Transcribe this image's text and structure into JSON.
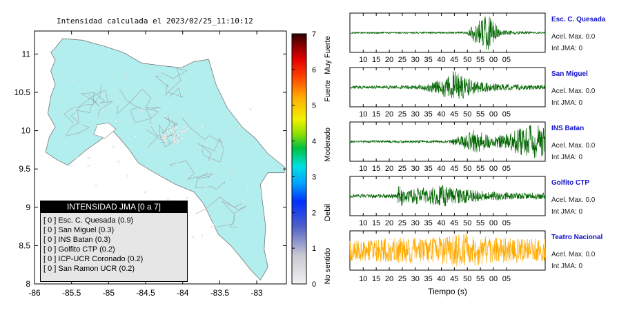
{
  "map": {
    "title": "Intensidad calculada el 2023/02/25_11:10:12",
    "x_ticks": [
      "-86",
      "-85.5",
      "-85",
      "-84.5",
      "-84",
      "-83.5",
      "-83"
    ],
    "y_ticks": [
      "11",
      "10.5",
      "10",
      "9.5",
      "9",
      "8.5",
      "8"
    ],
    "xlim": [
      -86,
      -82.6
    ],
    "ylim": [
      8,
      11.3
    ],
    "land_color": "#b3eeee",
    "road_color": "#a0a0a0"
  },
  "legend": {
    "header": "INTENSIDAD JMA [0 a 7]",
    "items": [
      {
        "bracket": "[ 0 ]",
        "name": "Esc. C. Quesada (0.9)"
      },
      {
        "bracket": "[ 0 ]",
        "name": "San Miguel (0.3)"
      },
      {
        "bracket": "[ 0 ]",
        "name": "INS Batan (0.3)"
      },
      {
        "bracket": "[ 0 ]",
        "name": "Golfito CTP (0.2)"
      },
      {
        "bracket": "[ 0 ]",
        "name": "ICP-UCR Coronado (0.2)"
      },
      {
        "bracket": "[ 0 ]",
        "name": "San Ramon UCR (0.2)"
      }
    ]
  },
  "colorbar": {
    "ticks": [
      "0",
      "1",
      "2",
      "3",
      "4",
      "5",
      "6",
      "7"
    ],
    "labels": [
      "No sentido",
      "Debil",
      "Moderado",
      "Fuerte",
      "Muy Fuerte"
    ],
    "range": [
      0,
      7
    ]
  },
  "chart_data": [
    {
      "type": "line",
      "station": "Esc. C. Quesada",
      "acel": "Acel. Max. 0.0",
      "int": "Int JMA: 0",
      "color": "#006400",
      "x_ticks": [
        "10",
        "15",
        "20",
        "25",
        "30",
        "35",
        "40",
        "45",
        "50",
        "55",
        "00",
        "05"
      ],
      "envelope": [
        [
          0,
          0.04
        ],
        [
          45,
          0.05
        ],
        [
          48,
          0.6
        ],
        [
          51,
          0.85
        ],
        [
          53,
          1.0
        ],
        [
          55,
          0.75
        ],
        [
          58,
          0.15
        ],
        [
          70,
          0.05
        ],
        [
          75,
          0.04
        ]
      ]
    },
    {
      "type": "line",
      "station": "San Miguel",
      "acel": "Acel. Max. 0.0",
      "int": "Int JMA: 0",
      "color": "#006400",
      "x_ticks": [
        "10",
        "15",
        "20",
        "25",
        "30",
        "35",
        "40",
        "45",
        "50",
        "55",
        "00",
        "05"
      ],
      "envelope": [
        [
          0,
          0.08
        ],
        [
          25,
          0.1
        ],
        [
          35,
          0.45
        ],
        [
          40,
          1.0
        ],
        [
          44,
          0.6
        ],
        [
          50,
          0.3
        ],
        [
          60,
          0.18
        ],
        [
          75,
          0.12
        ]
      ]
    },
    {
      "type": "line",
      "station": "INS Batan",
      "acel": "Acel. Max. 0.0",
      "int": "Int JMA: 0",
      "color": "#006400",
      "x_ticks": [
        "10",
        "15",
        "20",
        "25",
        "30",
        "35",
        "40",
        "45",
        "50",
        "55",
        "00",
        "05"
      ],
      "envelope": [
        [
          0,
          0.06
        ],
        [
          38,
          0.08
        ],
        [
          45,
          0.45
        ],
        [
          48,
          0.7
        ],
        [
          55,
          0.3
        ],
        [
          62,
          0.55
        ],
        [
          67,
          0.9
        ],
        [
          72,
          1.0
        ],
        [
          75,
          0.8
        ]
      ]
    },
    {
      "type": "line",
      "station": "Golfito CTP",
      "acel": "Acel. Max. 0.0",
      "int": "Int JMA: 0",
      "color": "#006400",
      "x_ticks": [
        "10",
        "15",
        "20",
        "25",
        "30",
        "35",
        "40",
        "45",
        "50",
        "55",
        "00",
        "05"
      ],
      "envelope": [
        [
          0,
          0.1
        ],
        [
          18,
          0.12
        ],
        [
          19,
          1.0
        ],
        [
          21,
          0.35
        ],
        [
          25,
          0.5
        ],
        [
          30,
          0.45
        ],
        [
          36,
          0.65
        ],
        [
          40,
          0.45
        ],
        [
          50,
          0.3
        ],
        [
          60,
          0.22
        ],
        [
          75,
          0.18
        ]
      ]
    },
    {
      "type": "line",
      "station": "Teatro Nacional",
      "acel": "Acel. Max. 0.0",
      "int": "Int JMA: 0",
      "color": "#ffaa00",
      "x_ticks": [
        "10",
        "15",
        "20",
        "25",
        "30",
        "35",
        "40",
        "45",
        "50",
        "55",
        "00",
        "05"
      ],
      "xlabel": "Tiempo (s)",
      "envelope": [
        [
          0,
          0.6
        ],
        [
          10,
          0.65
        ],
        [
          20,
          0.75
        ],
        [
          30,
          0.7
        ],
        [
          40,
          0.9
        ],
        [
          45,
          1.0
        ],
        [
          55,
          0.75
        ],
        [
          65,
          0.7
        ],
        [
          75,
          0.65
        ]
      ]
    }
  ]
}
